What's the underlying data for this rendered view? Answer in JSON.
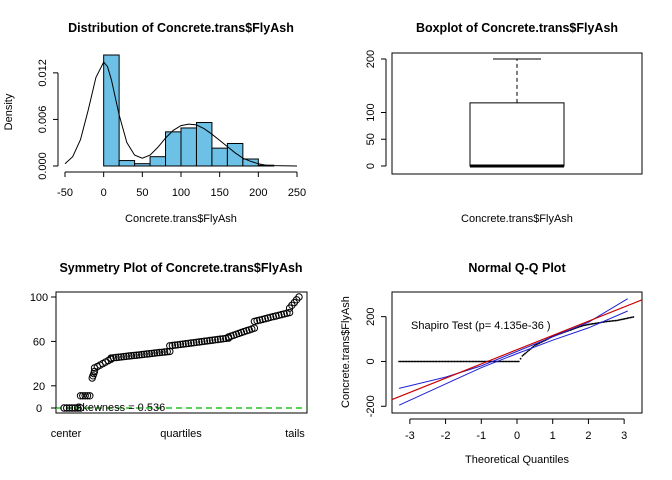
{
  "chart_data": [
    {
      "type": "bar",
      "title": "Distribution of Concrete.trans$FlyAsh",
      "xlabel": "Concrete.trans$FlyAsh",
      "ylabel": "Density",
      "xlim": [
        -50,
        250
      ],
      "ylim": [
        0,
        0.0143
      ],
      "x_ticks": [
        "-50",
        "0",
        "50",
        "100",
        "150",
        "200",
        "250"
      ],
      "x_tick_values": [
        -50,
        0,
        50,
        100,
        150,
        200,
        250
      ],
      "y_ticks": [
        "0.000",
        "0.006",
        "0.012"
      ],
      "y_tick_values": [
        0,
        0.006,
        0.012
      ],
      "bins": [
        {
          "x0": 0,
          "x1": 20,
          "density": 0.0143
        },
        {
          "x0": 20,
          "x1": 40,
          "density": 0.0007
        },
        {
          "x0": 40,
          "x1": 60,
          "density": 0.0003
        },
        {
          "x0": 60,
          "x1": 80,
          "density": 0.0012
        },
        {
          "x0": 80,
          "x1": 100,
          "density": 0.0044
        },
        {
          "x0": 100,
          "x1": 120,
          "density": 0.0049
        },
        {
          "x0": 120,
          "x1": 140,
          "density": 0.0056
        },
        {
          "x0": 140,
          "x1": 160,
          "density": 0.0023
        },
        {
          "x0": 160,
          "x1": 180,
          "density": 0.0029
        },
        {
          "x0": 180,
          "x1": 200,
          "density": 0.0009
        },
        {
          "x0": 200,
          "x1": 220,
          "density": 0.0001
        }
      ],
      "density_curve": {
        "x": [
          -50,
          -40,
          -30,
          -20,
          -10,
          0,
          5,
          10,
          20,
          30,
          40,
          50,
          60,
          70,
          80,
          90,
          100,
          110,
          120,
          130,
          140,
          150,
          160,
          170,
          180,
          190,
          200,
          210,
          220,
          230,
          240,
          250
        ],
        "y": [
          0.0003,
          0.0012,
          0.0034,
          0.0072,
          0.0114,
          0.0134,
          0.0128,
          0.0111,
          0.0066,
          0.003,
          0.0014,
          0.001,
          0.0014,
          0.0024,
          0.0036,
          0.0046,
          0.0052,
          0.0054,
          0.0053,
          0.0048,
          0.0041,
          0.0033,
          0.0025,
          0.0017,
          0.001,
          0.0006,
          0.0003,
          0.0001,
          5e-05,
          2e-05,
          1e-05,
          0.0
        ]
      },
      "bar_color": "#6dc1e6"
    },
    {
      "type": "box",
      "title": "Boxplot of Concrete.trans$FlyAsh",
      "xlabel": "Concrete.trans$FlyAsh",
      "ylim": [
        -5,
        210
      ],
      "y_ticks": [
        "0",
        "50",
        "100",
        "200"
      ],
      "y_tick_values": [
        0,
        50,
        100,
        200
      ],
      "whisker_low": 0,
      "q1": 0,
      "median": 0,
      "q3": 118,
      "whisker_high": 200
    },
    {
      "type": "scatter",
      "title": "Symmetry Plot of Concrete.trans$FlyAsh",
      "ylim": [
        -3,
        103
      ],
      "y_ticks": [
        "0",
        "20",
        "60",
        "100"
      ],
      "y_tick_values": [
        0,
        20,
        60,
        100
      ],
      "x_ticks": [
        "center",
        "quartiles",
        "tails"
      ],
      "annotation": "Skewness = 0.536",
      "reference_line": 0,
      "reference_color": "#22c322",
      "quantile_segments": [
        {
          "x0": 0.0,
          "x1": 0.07,
          "y0": 0,
          "y1": 0
        },
        {
          "x0": 0.07,
          "x1": 0.11,
          "y0": 11,
          "y1": 11
        },
        {
          "x0": 0.12,
          "x1": 0.13,
          "y0": 27,
          "y1": 33
        },
        {
          "x0": 0.13,
          "x1": 0.2,
          "y0": 36,
          "y1": 44
        },
        {
          "x0": 0.2,
          "x1": 0.45,
          "y0": 45,
          "y1": 51
        },
        {
          "x0": 0.45,
          "x1": 0.7,
          "y0": 56,
          "y1": 63
        },
        {
          "x0": 0.7,
          "x1": 0.81,
          "y0": 64,
          "y1": 72
        },
        {
          "x0": 0.81,
          "x1": 0.96,
          "y0": 78,
          "y1": 86
        },
        {
          "x0": 0.96,
          "x1": 1.0,
          "y0": 90,
          "y1": 100
        }
      ]
    },
    {
      "type": "scatter",
      "title": "Normal Q-Q Plot",
      "xlabel": "Theoretical Quantiles",
      "ylabel": "Concrete.trans$FlyAsh",
      "xlim": [
        -3.5,
        3.5
      ],
      "ylim": [
        -230,
        310
      ],
      "x_ticks": [
        "-3",
        "-2",
        "-1",
        "0",
        "1",
        "2",
        "3"
      ],
      "x_tick_values": [
        -3,
        -2,
        -1,
        0,
        1,
        2,
        3
      ],
      "y_ticks": [
        "-200",
        "0",
        "200"
      ],
      "y_tick_values": [
        -200,
        0,
        200
      ],
      "annotation": "Shapiro Test (p= 4.135e-36 )",
      "reference_line": {
        "x0": -3.5,
        "y0": -170,
        "x1": 3.5,
        "y1": 275,
        "color": "#cc0000"
      },
      "confidence_bands": {
        "color": "#1f1fd6",
        "upper": {
          "x": [
            -3.3,
            -2,
            -1,
            0,
            1,
            2,
            3.1
          ],
          "y": [
            -120,
            -70,
            -20,
            45,
            110,
            175,
            280
          ]
        },
        "lower": {
          "x": [
            -3.3,
            -2,
            -1,
            0,
            1,
            2,
            3.1
          ],
          "y": [
            -195,
            -100,
            -28,
            35,
            95,
            150,
            225
          ]
        }
      },
      "points": {
        "x": [
          -3.3,
          -2.5,
          -1.5,
          -0.5,
          0.05,
          0.15,
          0.3,
          0.5,
          0.8,
          1.0,
          1.4,
          1.8,
          2.0,
          2.2,
          2.5,
          2.8,
          3.3
        ],
        "y": [
          0,
          0,
          0,
          0,
          0,
          25,
          45,
          72,
          95,
          112,
          135,
          158,
          165,
          170,
          178,
          183,
          200
        ]
      }
    }
  ]
}
